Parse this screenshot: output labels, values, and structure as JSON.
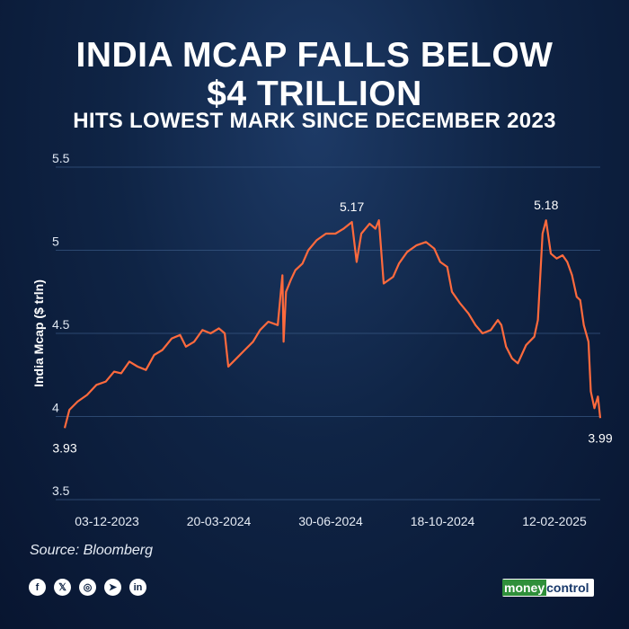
{
  "header": {
    "title_line1": "INDIA MCAP FALLS BELOW",
    "title_line2": "$4 TRILLION",
    "subtitle": "HITS LOWEST MARK SINCE DECEMBER 2023"
  },
  "chart_data": {
    "type": "line",
    "ylabel": "India Mcap ($ trln)",
    "xlabel": "",
    "ylim": [
      3.5,
      5.5
    ],
    "yticks": [
      3.5,
      4,
      4.5,
      5,
      5.5
    ],
    "ytick_labels": [
      "3.5",
      "4",
      "4.5",
      "5",
      "5.5"
    ],
    "xtick_labels": [
      "03-12-2023",
      "20-03-2024",
      "30-06-2024",
      "18-10-2024",
      "12-02-2025"
    ],
    "x_range": [
      "2023-12-01",
      "2025-02-28"
    ],
    "grid": true,
    "color": "#ff6a3d",
    "series": [
      {
        "points": [
          [
            "2023-12-01",
            3.93
          ],
          [
            "2023-12-05",
            4.04
          ],
          [
            "2023-12-12",
            4.09
          ],
          [
            "2023-12-20",
            4.13
          ],
          [
            "2023-12-28",
            4.19
          ],
          [
            "2024-01-05",
            4.21
          ],
          [
            "2024-01-12",
            4.27
          ],
          [
            "2024-01-18",
            4.26
          ],
          [
            "2024-01-25",
            4.33
          ],
          [
            "2024-02-01",
            4.3
          ],
          [
            "2024-02-08",
            4.28
          ],
          [
            "2024-02-15",
            4.37
          ],
          [
            "2024-02-22",
            4.4
          ],
          [
            "2024-03-01",
            4.47
          ],
          [
            "2024-03-08",
            4.49
          ],
          [
            "2024-03-13",
            4.42
          ],
          [
            "2024-03-20",
            4.45
          ],
          [
            "2024-03-27",
            4.52
          ],
          [
            "2024-04-03",
            4.5
          ],
          [
            "2024-04-10",
            4.53
          ],
          [
            "2024-04-15",
            4.5
          ],
          [
            "2024-04-18",
            4.3
          ],
          [
            "2024-04-25",
            4.35
          ],
          [
            "2024-05-02",
            4.4
          ],
          [
            "2024-05-09",
            4.45
          ],
          [
            "2024-05-15",
            4.52
          ],
          [
            "2024-05-22",
            4.57
          ],
          [
            "2024-05-30",
            4.55
          ],
          [
            "2024-06-03",
            4.85
          ],
          [
            "2024-06-04",
            4.45
          ],
          [
            "2024-06-06",
            4.75
          ],
          [
            "2024-06-10",
            4.82
          ],
          [
            "2024-06-14",
            4.88
          ],
          [
            "2024-06-20",
            4.92
          ],
          [
            "2024-06-25",
            5.0
          ],
          [
            "2024-07-02",
            5.06
          ],
          [
            "2024-07-10",
            5.1
          ],
          [
            "2024-07-18",
            5.1
          ],
          [
            "2024-07-25",
            5.13
          ],
          [
            "2024-08-01",
            5.17
          ],
          [
            "2024-08-05",
            4.93
          ],
          [
            "2024-08-09",
            5.1
          ],
          [
            "2024-08-16",
            5.16
          ],
          [
            "2024-08-21",
            5.13
          ],
          [
            "2024-08-24",
            5.18
          ],
          [
            "2024-08-28",
            4.8
          ],
          [
            "2024-09-05",
            4.84
          ],
          [
            "2024-09-10",
            4.92
          ],
          [
            "2024-09-17",
            4.99
          ],
          [
            "2024-09-25",
            5.03
          ],
          [
            "2024-10-03",
            5.05
          ],
          [
            "2024-10-10",
            5.01
          ],
          [
            "2024-10-15",
            4.93
          ],
          [
            "2024-10-21",
            4.9
          ],
          [
            "2024-10-25",
            4.75
          ],
          [
            "2024-11-01",
            4.68
          ],
          [
            "2024-11-08",
            4.62
          ],
          [
            "2024-11-14",
            4.55
          ],
          [
            "2024-11-20",
            4.5
          ],
          [
            "2024-11-27",
            4.52
          ],
          [
            "2024-12-03",
            4.58
          ],
          [
            "2024-12-06",
            4.55
          ],
          [
            "2024-12-10",
            4.42
          ],
          [
            "2024-12-15",
            4.35
          ],
          [
            "2024-12-20",
            4.32
          ],
          [
            "2024-12-27",
            4.43
          ],
          [
            "2025-01-03",
            4.48
          ],
          [
            "2025-01-06",
            4.58
          ],
          [
            "2025-01-10",
            5.1
          ],
          [
            "2025-01-13",
            5.18
          ],
          [
            "2025-01-17",
            4.98
          ],
          [
            "2025-01-22",
            4.95
          ],
          [
            "2025-01-27",
            4.97
          ],
          [
            "2025-01-31",
            4.93
          ],
          [
            "2025-02-04",
            4.85
          ],
          [
            "2025-02-08",
            4.72
          ],
          [
            "2025-02-11",
            4.7
          ],
          [
            "2025-02-14",
            4.55
          ],
          [
            "2025-02-18",
            4.45
          ],
          [
            "2025-02-20",
            4.15
          ],
          [
            "2025-02-23",
            4.05
          ],
          [
            "2025-02-26",
            4.12
          ],
          [
            "2025-02-28",
            3.99
          ]
        ]
      }
    ],
    "annotations": [
      {
        "label": "3.93",
        "x": "2023-12-01",
        "y": 3.93,
        "position": "below"
      },
      {
        "label": "5.17",
        "x": "2024-08-01",
        "y": 5.17,
        "position": "above"
      },
      {
        "label": "5.18",
        "x": "2025-01-13",
        "y": 5.18,
        "position": "above"
      },
      {
        "label": "3.99",
        "x": "2025-02-28",
        "y": 3.99,
        "position": "below"
      }
    ]
  },
  "footer": {
    "source": "Source: Bloomberg",
    "social_icons": [
      "facebook-icon",
      "x-icon",
      "instagram-icon",
      "telegram-icon",
      "linkedin-icon"
    ],
    "social_glyphs": [
      "f",
      "𝕏",
      "◎",
      "➤",
      "in"
    ],
    "brand_part1": "money",
    "brand_part2": "control"
  }
}
